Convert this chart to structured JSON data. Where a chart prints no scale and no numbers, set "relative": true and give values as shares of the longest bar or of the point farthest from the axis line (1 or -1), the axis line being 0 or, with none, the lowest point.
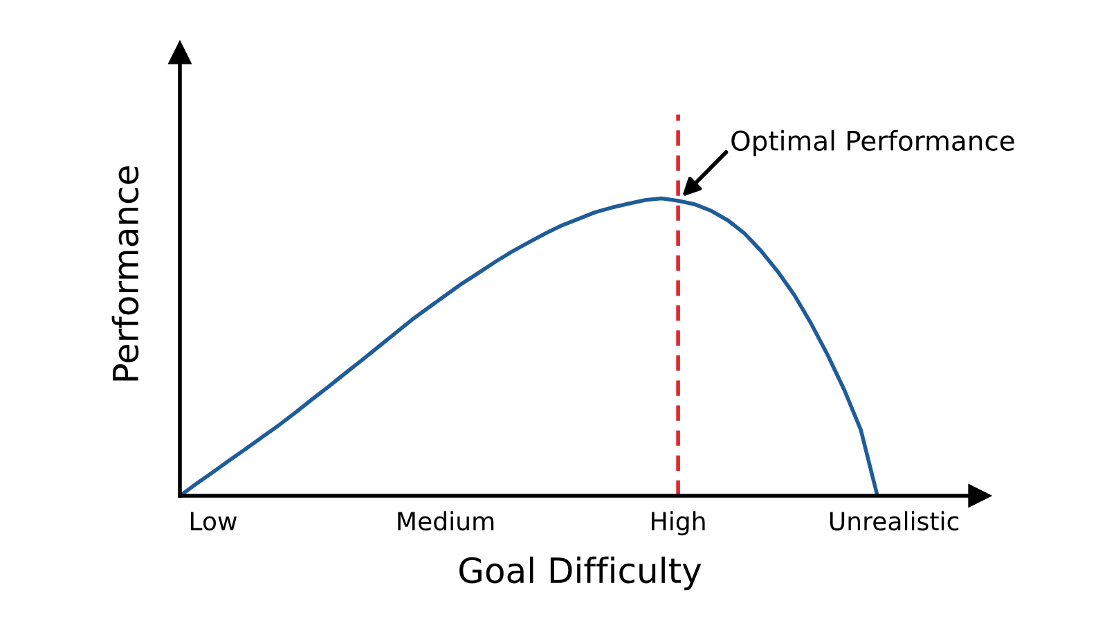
{
  "chart_data": {
    "type": "line",
    "relative": true,
    "xlabel": "Goal Difficulty",
    "ylabel": "Performance",
    "categories": [
      null,
      null,
      "Low",
      null,
      null,
      null,
      null,
      null,
      null,
      null,
      null,
      null,
      null,
      null,
      null,
      null,
      "Medium",
      null,
      null,
      null,
      null,
      null,
      null,
      null,
      null,
      null,
      null,
      null,
      null,
      null,
      "High",
      null,
      null,
      null,
      null,
      null,
      null,
      null,
      null,
      null,
      null,
      null,
      null,
      "Unrealistic"
    ],
    "series": [
      {
        "color": "#1f5c99",
        "values": [
          0,
          0.041,
          0.08,
          0.12,
          0.159,
          0.199,
          0.239,
          0.282,
          0.326,
          0.369,
          0.414,
          0.458,
          0.503,
          0.548,
          0.593,
          0.634,
          0.674,
          0.714,
          0.75,
          0.787,
          0.821,
          0.852,
          0.882,
          0.909,
          0.931,
          0.953,
          0.969,
          0.982,
          0.994,
          1,
          0.992,
          0.98,
          0.958,
          0.926,
          0.882,
          0.823,
          0.754,
          0.675,
          0.58,
          0.474,
          0.357,
          0.222,
          0,
          null
        ]
      }
    ],
    "tick_labels": "x",
    "ref_lines": [
      {
        "axis": "x",
        "value": "High",
        "color": "#e0262b",
        "line_style": "dashed"
      }
    ],
    "annotations": [
      {
        "text": "Optimal Performance",
        "x": "High",
        "y": 0.992
      }
    ]
  }
}
